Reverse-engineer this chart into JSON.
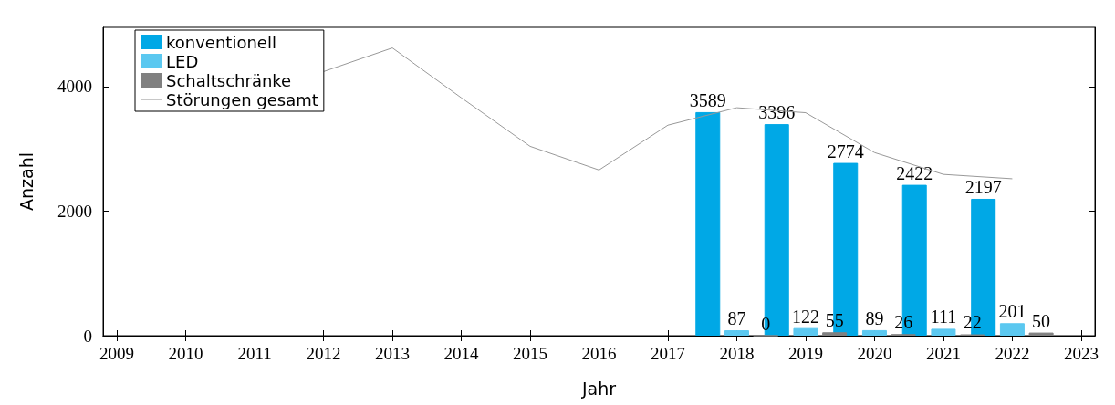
{
  "chart_data": {
    "type": "bar",
    "xlabel": "Jahr",
    "ylabel": "Anzahl",
    "xlim": [
      2008.8,
      2023.2
    ],
    "xticks": [
      2009,
      2010,
      2011,
      2012,
      2013,
      2014,
      2015,
      2016,
      2017,
      2018,
      2019,
      2020,
      2021,
      2022,
      2023
    ],
    "ylim": [
      0,
      4950
    ],
    "yticks": [
      0,
      2000,
      4000
    ],
    "legend": "top left",
    "grid": false,
    "series": [
      {
        "name": "konventionell",
        "color": "#00a8e6",
        "x": [
          2017.58,
          2018.58,
          2019.58,
          2020.58,
          2021.58
        ],
        "values": [
          3589,
          3396,
          2774,
          2422,
          2197
        ],
        "value_labels": [
          "3589",
          "3396",
          "2774",
          "2422",
          "2197"
        ]
      },
      {
        "name": "LED",
        "color": "#5bc8f0",
        "x": [
          2018,
          2019,
          2020,
          2021,
          2022
        ],
        "values": [
          87,
          122,
          89,
          111,
          201
        ],
        "value_labels": [
          "87",
          "122",
          "89",
          "111",
          "201"
        ]
      },
      {
        "name": "Schaltschränke",
        "color": "#808080",
        "x": [
          2018.42,
          2019.42,
          2020.42,
          2021.42,
          2022.42
        ],
        "values": [
          0,
          55,
          26,
          22,
          50
        ],
        "value_labels": [
          "0",
          "55",
          "26",
          "22",
          "50"
        ]
      },
      {
        "name": "Störungen gesamt",
        "type": "line",
        "color": "#999999",
        "marker": "none",
        "x": [
          2012,
          2013,
          2014,
          2015,
          2016,
          2017,
          2018,
          2019,
          2020,
          2021,
          2022
        ],
        "values": [
          4240,
          4620,
          3820,
          3040,
          2660,
          3380,
          3660,
          3580,
          2940,
          2590,
          2520
        ]
      }
    ]
  }
}
